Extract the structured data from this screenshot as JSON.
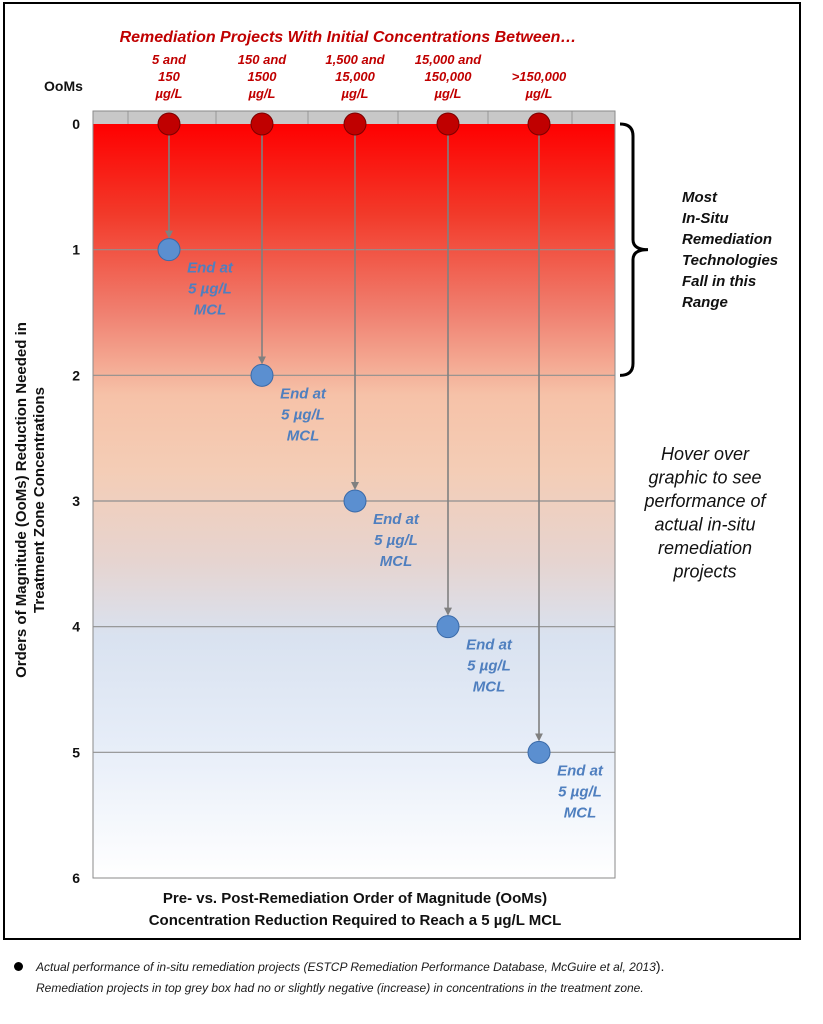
{
  "chart_data": {
    "type": "scatter",
    "title": "Remediation Projects With Initial Concentrations Between…",
    "ylabel_prefix": "OoMs",
    "ylabel": [
      "Orders of Magnitude (OoMs) Reduction Needed in",
      "Treatment Zone Concentrations"
    ],
    "xlabel": [
      "Pre- vs. Post-Remediation Order of Magnitude (OoMs)",
      "Concentration Reduction Required to Reach a 5 µg/L MCL"
    ],
    "ylim": [
      0,
      6
    ],
    "y_ticks": [
      "0",
      "1",
      "2",
      "3",
      "4",
      "5",
      "6"
    ],
    "y_inverted": true,
    "categories": [
      {
        "label": [
          "5 and",
          "150",
          "µg/L"
        ],
        "start": 0,
        "end": 1,
        "end_label": [
          "End at",
          "5 µg/L",
          "MCL"
        ]
      },
      {
        "label": [
          "150 and",
          "1500",
          "µg/L"
        ],
        "start": 0,
        "end": 2,
        "end_label": [
          "End at",
          "5 µg/L",
          "MCL"
        ]
      },
      {
        "label": [
          "1,500 and",
          "15,000",
          "µg/L"
        ],
        "start": 0,
        "end": 3,
        "end_label": [
          "End at",
          "5 µg/L",
          "MCL"
        ]
      },
      {
        "label": [
          "15,000 and",
          "150,000",
          "µg/L"
        ],
        "start": 0,
        "end": 4,
        "end_label": [
          "End at",
          "5 µg/L",
          "MCL"
        ]
      },
      {
        "label": [
          ">150,000",
          "µg/L"
        ],
        "start": 0,
        "end": 5,
        "end_label": [
          "End at",
          "5 µg/L",
          "MCL"
        ]
      }
    ],
    "bracket_range": [
      0,
      2
    ],
    "bracket_label": [
      "Most",
      "In-Situ",
      "Remediation",
      "Technologies",
      "Fall in this",
      "Range"
    ],
    "hover_note": [
      "Hover over",
      "graphic to see",
      "performance of",
      "actual in-situ",
      "remediation",
      "projects"
    ],
    "colors": {
      "start_marker": "#c00000",
      "end_marker": "#5b8fd0",
      "title": "#c00000",
      "end_label": "#4f7fbf"
    }
  },
  "footnote": {
    "line1_a": "Actual performance of in-situ remediation projects (ESTCP Remediation Performance Database, McGuire et al, 2013",
    "line1_b": ").",
    "line2": "Remediation projects in top grey box had no or slightly negative (increase) in concentrations in the treatment zone."
  }
}
